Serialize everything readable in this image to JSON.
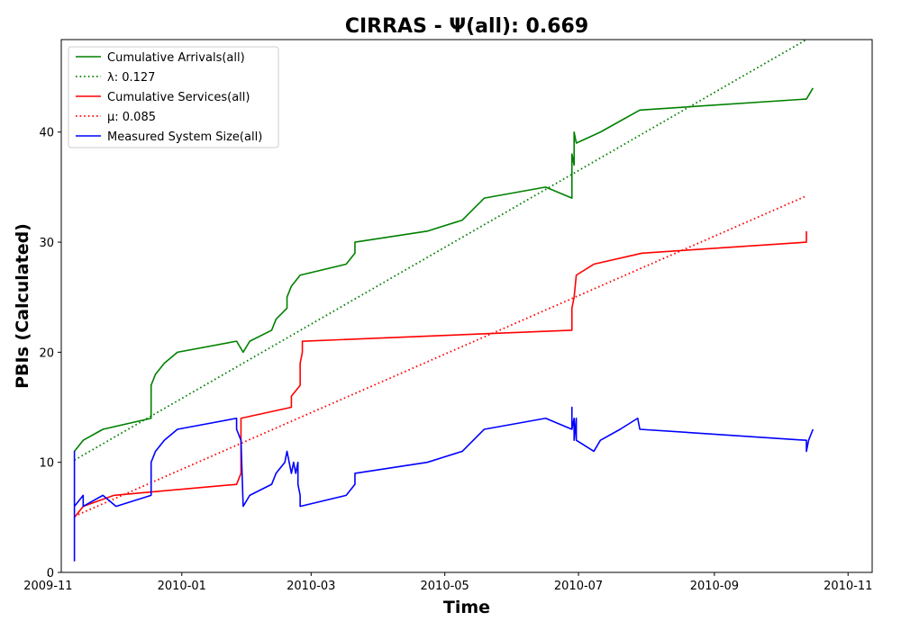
{
  "chart_data": {
    "type": "line",
    "title": "CIRRAS -  Ψ(all): 0.669",
    "xlabel": "Time",
    "ylabel": "PBIs (Calculated)",
    "x_type": "date",
    "xlim": [
      "2009-11-07",
      "2010-11-12"
    ],
    "ylim": [
      0,
      48.4
    ],
    "xticks": [
      {
        "date": "2009-11-01",
        "label": "2009-11"
      },
      {
        "date": "2010-01-01",
        "label": "2010-01"
      },
      {
        "date": "2010-03-01",
        "label": "2010-03"
      },
      {
        "date": "2010-05-01",
        "label": "2010-05"
      },
      {
        "date": "2010-07-01",
        "label": "2010-07"
      },
      {
        "date": "2010-09-01",
        "label": "2010-09"
      },
      {
        "date": "2010-11-01",
        "label": "2010-11"
      }
    ],
    "yticks": [
      0,
      10,
      20,
      30,
      40
    ],
    "grid": false,
    "legend_position": "top-left",
    "series": [
      {
        "name": "Cumulative Arrivals(all)",
        "color": "#008000",
        "style": "solid",
        "points": [
          [
            "2009-11-13",
            11
          ],
          [
            "2009-11-17",
            12
          ],
          [
            "2009-11-26",
            13
          ],
          [
            "2009-12-18",
            14
          ],
          [
            "2009-12-18",
            16
          ],
          [
            "2009-12-18",
            17
          ],
          [
            "2009-12-20",
            18
          ],
          [
            "2009-12-24",
            19
          ],
          [
            "2009-12-30",
            20
          ],
          [
            "2010-01-26",
            21
          ],
          [
            "2010-01-29",
            20
          ],
          [
            "2010-02-01",
            21
          ],
          [
            "2010-02-11",
            22
          ],
          [
            "2010-02-13",
            23
          ],
          [
            "2010-02-18",
            24
          ],
          [
            "2010-02-18",
            25
          ],
          [
            "2010-02-20",
            26
          ],
          [
            "2010-02-24",
            27
          ],
          [
            "2010-03-17",
            28
          ],
          [
            "2010-03-21",
            29
          ],
          [
            "2010-03-21",
            30
          ],
          [
            "2010-04-23",
            31
          ],
          [
            "2010-05-09",
            32
          ],
          [
            "2010-05-14",
            33
          ],
          [
            "2010-05-19",
            34
          ],
          [
            "2010-06-16",
            35
          ],
          [
            "2010-06-28",
            34
          ],
          [
            "2010-06-28",
            38
          ],
          [
            "2010-06-29",
            37
          ],
          [
            "2010-06-29",
            40
          ],
          [
            "2010-06-30",
            39
          ],
          [
            "2010-07-11",
            40
          ],
          [
            "2010-07-20",
            41
          ],
          [
            "2010-07-29",
            42
          ],
          [
            "2010-10-13",
            43
          ],
          [
            "2010-10-16",
            44
          ]
        ]
      },
      {
        "name": "λ: 0.127",
        "color": "#008000",
        "style": "dotted",
        "points": [
          [
            "2009-11-13",
            10.2
          ],
          [
            "2010-10-13",
            48.4
          ]
        ]
      },
      {
        "name": "Cumulative Services(all)",
        "color": "#ff0000",
        "style": "solid",
        "points": [
          [
            "2009-11-13",
            5
          ],
          [
            "2009-11-17",
            6
          ],
          [
            "2009-12-01",
            7
          ],
          [
            "2010-01-26",
            8
          ],
          [
            "2010-01-28",
            9
          ],
          [
            "2010-01-28",
            14
          ],
          [
            "2010-02-20",
            15
          ],
          [
            "2010-02-20",
            16
          ],
          [
            "2010-02-24",
            17
          ],
          [
            "2010-02-24",
            19
          ],
          [
            "2010-02-25",
            20
          ],
          [
            "2010-02-25",
            21
          ],
          [
            "2010-06-28",
            22
          ],
          [
            "2010-06-28",
            24
          ],
          [
            "2010-06-29",
            25
          ],
          [
            "2010-06-30",
            27
          ],
          [
            "2010-07-08",
            28
          ],
          [
            "2010-07-30",
            29
          ],
          [
            "2010-10-13",
            30
          ],
          [
            "2010-10-13",
            31
          ]
        ]
      },
      {
        "name": "μ: 0.085",
        "color": "#ff0000",
        "style": "dotted",
        "points": [
          [
            "2009-11-13",
            5.1
          ],
          [
            "2010-10-13",
            34.2
          ]
        ]
      },
      {
        "name": "Measured System Size(all)",
        "color": "#0000ff",
        "style": "solid",
        "points": [
          [
            "2009-11-13",
            1
          ],
          [
            "2009-11-13",
            11
          ],
          [
            "2009-11-13",
            6
          ],
          [
            "2009-11-17",
            7
          ],
          [
            "2009-11-17",
            6
          ],
          [
            "2009-11-26",
            7
          ],
          [
            "2009-12-02",
            6
          ],
          [
            "2009-12-18",
            7
          ],
          [
            "2009-12-18",
            9
          ],
          [
            "2009-12-18",
            10
          ],
          [
            "2009-12-20",
            11
          ],
          [
            "2009-12-24",
            12
          ],
          [
            "2009-12-30",
            13
          ],
          [
            "2010-01-26",
            14
          ],
          [
            "2010-01-26",
            13
          ],
          [
            "2010-01-28",
            12
          ],
          [
            "2010-01-29",
            6
          ],
          [
            "2010-02-01",
            7
          ],
          [
            "2010-02-11",
            8
          ],
          [
            "2010-02-13",
            9
          ],
          [
            "2010-02-17",
            10
          ],
          [
            "2010-02-18",
            11
          ],
          [
            "2010-02-19",
            10
          ],
          [
            "2010-02-20",
            9
          ],
          [
            "2010-02-21",
            10
          ],
          [
            "2010-02-22",
            9
          ],
          [
            "2010-02-23",
            10
          ],
          [
            "2010-02-23",
            8
          ],
          [
            "2010-02-24",
            7
          ],
          [
            "2010-02-24",
            6
          ],
          [
            "2010-03-17",
            7
          ],
          [
            "2010-03-21",
            8
          ],
          [
            "2010-03-21",
            9
          ],
          [
            "2010-04-23",
            10
          ],
          [
            "2010-05-09",
            11
          ],
          [
            "2010-05-14",
            12
          ],
          [
            "2010-05-19",
            13
          ],
          [
            "2010-06-16",
            14
          ],
          [
            "2010-06-28",
            13
          ],
          [
            "2010-06-28",
            15
          ],
          [
            "2010-06-28",
            13
          ],
          [
            "2010-06-29",
            14
          ],
          [
            "2010-06-29",
            12
          ],
          [
            "2010-06-30",
            14
          ],
          [
            "2010-06-30",
            12
          ],
          [
            "2010-07-08",
            11
          ],
          [
            "2010-07-11",
            12
          ],
          [
            "2010-07-20",
            13
          ],
          [
            "2010-07-28",
            14
          ],
          [
            "2010-07-29",
            13
          ],
          [
            "2010-10-13",
            12
          ],
          [
            "2010-10-13",
            11
          ],
          [
            "2010-10-14",
            12
          ],
          [
            "2010-10-16",
            13
          ]
        ]
      }
    ]
  }
}
